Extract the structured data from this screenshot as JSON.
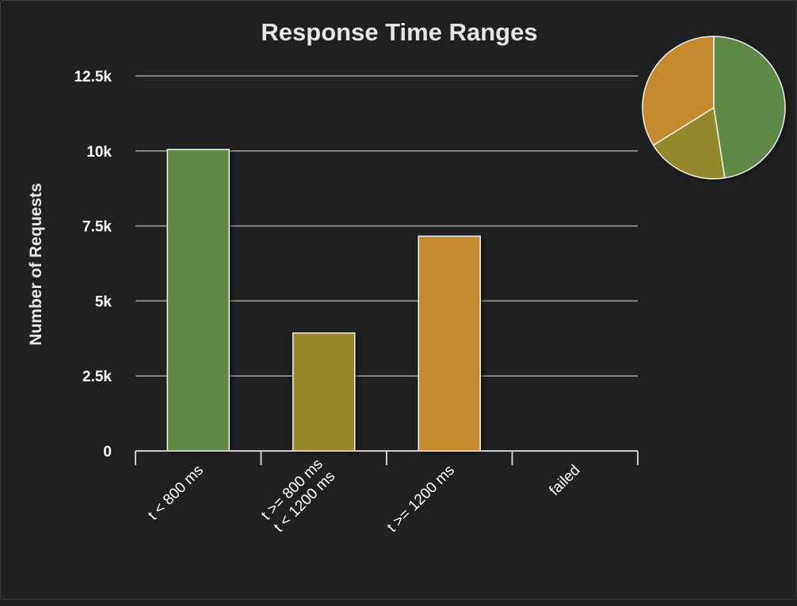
{
  "chart_data": {
    "type": "bar",
    "title": "Response Time Ranges",
    "xlabel": "",
    "ylabel": "Number of Requests",
    "categories": [
      [
        "t < 800 ms"
      ],
      [
        "t >= 800 ms",
        "t < 1200 ms"
      ],
      [
        "t >= 1200 ms"
      ],
      [
        "failed"
      ]
    ],
    "values": [
      10050,
      3930,
      7160,
      0
    ],
    "ylim": [
      0,
      12500
    ],
    "yticks": [
      0,
      2500,
      5000,
      7500,
      10000,
      12500
    ],
    "ytick_labels": [
      "0",
      "2.5k",
      "5k",
      "7.5k",
      "10k",
      "12.5k"
    ],
    "grid": true,
    "colors": [
      "#5f8745",
      "#95872c",
      "#c58a2e",
      "#c0392b"
    ],
    "inset_pie": {
      "type": "pie",
      "values": [
        10050,
        3930,
        7160,
        0
      ]
    }
  }
}
